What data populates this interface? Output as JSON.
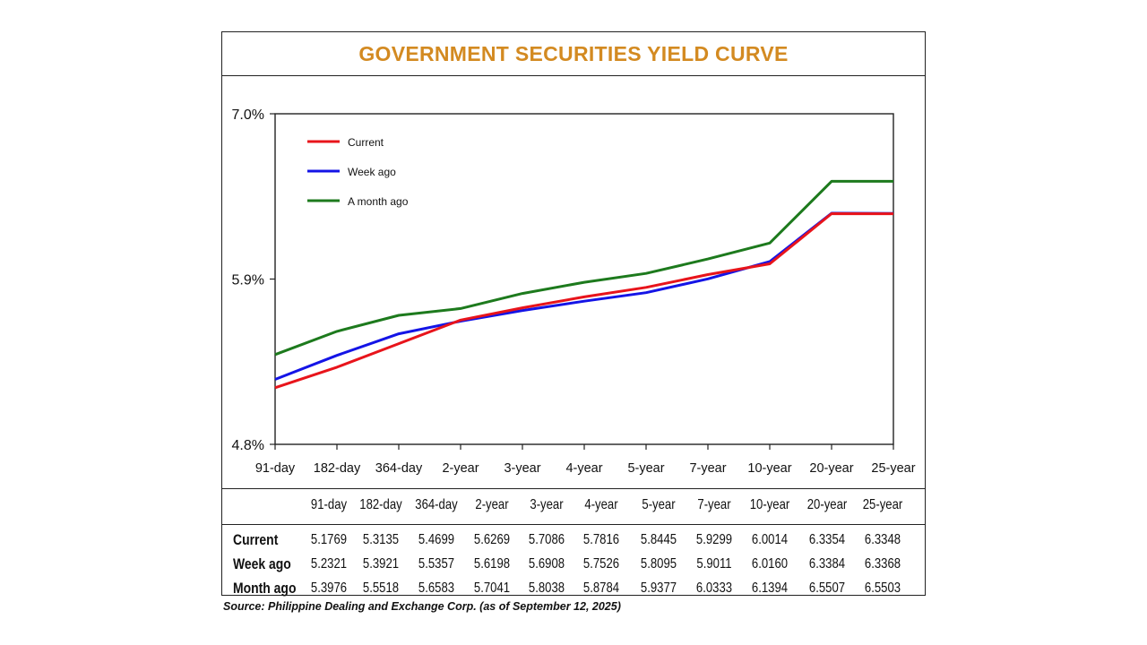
{
  "chart_data": {
    "type": "line",
    "title": "GOVERNMENT SECURITIES YIELD CURVE",
    "categories": [
      "91-day",
      "182-day",
      "364-day",
      "2-year",
      "3-year",
      "4-year",
      "5-year",
      "7-year",
      "10-year",
      "20-year",
      "25-year"
    ],
    "yticks": [
      "7.0%",
      "5.9%",
      "4.8%"
    ],
    "ylim": [
      4.8,
      7.0
    ],
    "legend_position": "top-left",
    "series": [
      {
        "name": "Current",
        "color": "#e8141b",
        "values": [
          5.1769,
          5.3135,
          5.4699,
          5.6269,
          5.7086,
          5.7816,
          5.8445,
          5.9299,
          6.0014,
          6.3354,
          6.3348
        ]
      },
      {
        "name": "Week ago",
        "color": "#1414e6",
        "values": [
          5.2321,
          5.3921,
          5.5357,
          5.6198,
          5.6908,
          5.7526,
          5.8095,
          5.9011,
          6.016,
          6.3384,
          6.3368
        ]
      },
      {
        "name": "A month ago",
        "color": "#1d7a1d",
        "values": [
          5.3976,
          5.5518,
          5.6583,
          5.7041,
          5.8038,
          5.8784,
          5.9377,
          6.0333,
          6.1394,
          6.5507,
          6.5503
        ]
      }
    ]
  },
  "table": {
    "headers": [
      "91-day",
      "182-day",
      "364-day",
      "2-year",
      "3-year",
      "4-year",
      "5-year",
      "7-year",
      "10-year",
      "20-year",
      "25-year"
    ],
    "rows": [
      {
        "label": "Current",
        "values": [
          "5.1769",
          "5.3135",
          "5.4699",
          "5.6269",
          "5.7086",
          "5.7816",
          "5.8445",
          "5.9299",
          "6.0014",
          "6.3354",
          "6.3348"
        ]
      },
      {
        "label": "Week ago",
        "values": [
          "5.2321",
          "5.3921",
          "5.5357",
          "5.6198",
          "5.6908",
          "5.7526",
          "5.8095",
          "5.9011",
          "6.0160",
          "6.3384",
          "6.3368"
        ]
      },
      {
        "label": "Month ago",
        "values": [
          "5.3976",
          "5.5518",
          "5.6583",
          "5.7041",
          "5.8038",
          "5.8784",
          "5.9377",
          "6.0333",
          "6.1394",
          "6.5507",
          "6.5503"
        ]
      }
    ]
  },
  "source": "Source: Philippine Dealing and Exchange Corp. (as of September 12, 2025)"
}
